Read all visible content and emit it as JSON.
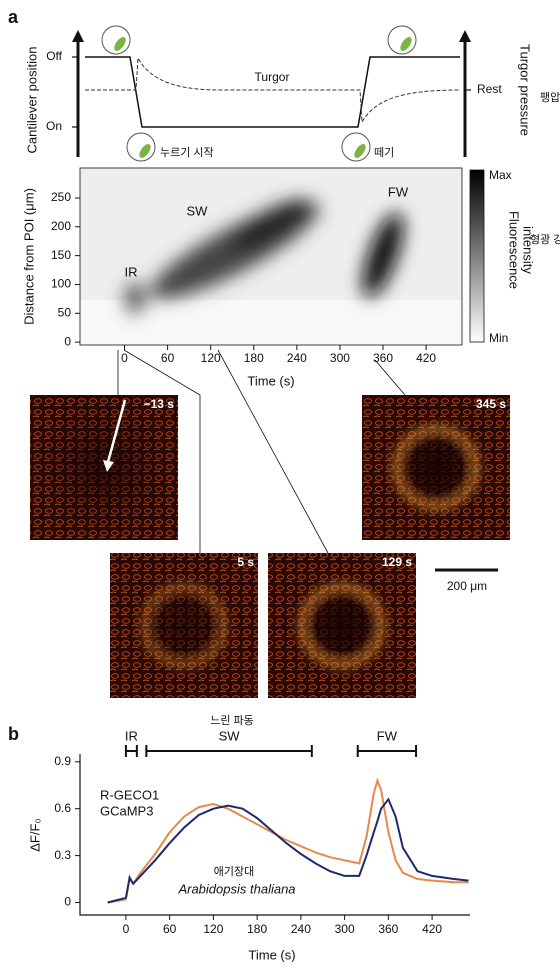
{
  "panel_labels": {
    "a": "a",
    "b": "b"
  },
  "schematic": {
    "y_labels": [
      "Off",
      "On"
    ],
    "y_title": "Cantilever position",
    "turgor_label": "Turgor",
    "rest_label": "Rest",
    "y2_title": "Turgor pressure",
    "y2_title_ko": "팽압",
    "press_label": "누르기 시작",
    "release_label": "떼기"
  },
  "micrographs": [
    {
      "label": "−13 s"
    },
    {
      "label": "345 s"
    },
    {
      "label": "5 s"
    },
    {
      "label": "129 s"
    }
  ],
  "scale_bar": "200 μm",
  "chart_data": [
    {
      "type": "heatmap",
      "xlabel": "Time (s)",
      "ylabel": "Distance from POI (μm)",
      "xlim": [
        -62,
        470
      ],
      "ylim": [
        -5,
        302
      ],
      "xticks": [
        0,
        60,
        120,
        180,
        240,
        300,
        360,
        420
      ],
      "yticks": [
        0,
        50,
        100,
        150,
        200,
        250
      ],
      "annotations": [
        "IR",
        "SW",
        "FW"
      ],
      "colorbar": {
        "max_label": "Max",
        "min_label": "Min",
        "title": [
          "Fluorescence",
          "intensity"
        ],
        "title_ko": "형광 강도"
      }
    },
    {
      "type": "line",
      "xlabel": "Time (s)",
      "ylabel": "ΔF/F₀",
      "xlim": [
        -63,
        472
      ],
      "ylim": [
        -0.08,
        0.95
      ],
      "xticks": [
        0,
        60,
        120,
        180,
        240,
        300,
        360,
        420
      ],
      "yticks": [
        0,
        0.3,
        0.6,
        0.9
      ],
      "x": [
        -25,
        0,
        5,
        10,
        20,
        40,
        60,
        80,
        100,
        120,
        140,
        160,
        180,
        200,
        220,
        240,
        260,
        280,
        300,
        320,
        330,
        340,
        345,
        350,
        360,
        370,
        380,
        400,
        420,
        450,
        470
      ],
      "series": [
        {
          "name": "R-GECO1",
          "color": "#e8894a",
          "values": [
            0,
            0.02,
            0.15,
            0.12,
            0.19,
            0.31,
            0.45,
            0.55,
            0.61,
            0.63,
            0.6,
            0.55,
            0.5,
            0.45,
            0.4,
            0.36,
            0.32,
            0.29,
            0.27,
            0.25,
            0.42,
            0.7,
            0.78,
            0.72,
            0.45,
            0.27,
            0.19,
            0.15,
            0.14,
            0.13,
            0.13
          ]
        },
        {
          "name": "GCaMP3",
          "color": "#1c2a6b",
          "values": [
            0,
            0.03,
            0.16,
            0.12,
            0.17,
            0.27,
            0.38,
            0.48,
            0.56,
            0.6,
            0.62,
            0.6,
            0.54,
            0.46,
            0.38,
            0.31,
            0.25,
            0.2,
            0.17,
            0.17,
            0.3,
            0.45,
            0.52,
            0.6,
            0.66,
            0.55,
            0.35,
            0.2,
            0.17,
            0.15,
            0.14
          ]
        }
      ],
      "spans": [
        {
          "label": "IR",
          "x": [
            0,
            15
          ]
        },
        {
          "label": "SW",
          "x": [
            28,
            255
          ]
        },
        {
          "label": "FW",
          "x": [
            318,
            398
          ]
        }
      ],
      "span_note": "느린 파동",
      "annotations": [
        "애기장대",
        "Arabidopsis thaliana"
      ]
    }
  ]
}
